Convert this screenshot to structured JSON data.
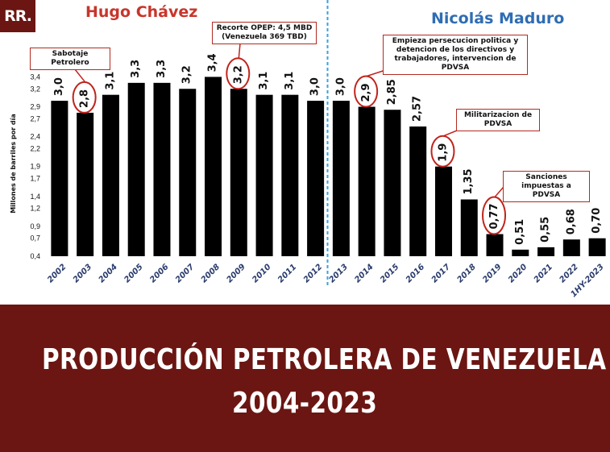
{
  "logo": {
    "text": "RR."
  },
  "eras": {
    "left": "Hugo Chávez",
    "right": "Nicolás Maduro"
  },
  "callouts": {
    "sabotaje": "Sabotaje Petrolero",
    "opep_line1": "Recorte OPEP: 4,5 MBD",
    "opep_line2": "(Venezuela 369 TBD)",
    "persecucion_line1": "Empieza persecucion politica y",
    "persecucion_line2": "detencion de los directivos y",
    "persecucion_line3": "trabajadores, intervencion de PDVSA",
    "militarizacion_line1": "Militarizacion de",
    "militarizacion_line2": "PDVSA",
    "sanciones_line1": "Sanciones impuestas a",
    "sanciones_line2": "PDVSA"
  },
  "banner": {
    "line1": "PRODUCCIÓN PETROLERA DE VENEZUELA",
    "line2": "2004-2023"
  },
  "colors": {
    "bar": "#000000",
    "banner_bg": "#6b1612",
    "chavez": "#c8352b",
    "maduro": "#2f6db4",
    "circle": "#c0241c",
    "divider": "#3aa0e0",
    "category_label": "#2b3d6e"
  },
  "chart_data": {
    "type": "bar",
    "title": "",
    "xlabel": "",
    "ylabel": "Millones de barriles por día",
    "ylim": [
      0.4,
      3.5
    ],
    "yticks": [
      "0,4",
      "0,7",
      "0,9",
      "1,2",
      "1,4",
      "1,7",
      "1,9",
      "2,2",
      "2,4",
      "2,7",
      "2,9",
      "3,2",
      "3,4"
    ],
    "ytick_values": [
      0.4,
      0.7,
      0.9,
      1.2,
      1.4,
      1.7,
      1.9,
      2.2,
      2.4,
      2.7,
      2.9,
      3.2,
      3.4
    ],
    "categories": [
      "2002",
      "2003",
      "2004",
      "2005",
      "2006",
      "2007",
      "2008",
      "2009",
      "2010",
      "2011",
      "2012",
      "2013",
      "2014",
      "2015",
      "2016",
      "2017",
      "2018",
      "2019",
      "2020",
      "2021",
      "2022",
      "1HY-2023"
    ],
    "values": [
      3.0,
      2.8,
      3.1,
      3.3,
      3.3,
      3.2,
      3.4,
      3.2,
      3.1,
      3.1,
      3.0,
      3.0,
      2.9,
      2.85,
      2.57,
      1.9,
      1.35,
      0.77,
      0.51,
      0.55,
      0.68,
      0.7
    ],
    "data_labels": [
      "3,0",
      "2,8",
      "3,1",
      "3,3",
      "3,3",
      "3,2",
      "3,4",
      "3,2",
      "3,1",
      "3,1",
      "3,0",
      "3,0",
      "2,9",
      "2,85",
      "2,57",
      "1,9",
      "1,35",
      "0,77",
      "0,51",
      "0,55",
      "0,68",
      "0,70"
    ],
    "circled": [
      "2003",
      "2009",
      "2014",
      "2017",
      "2019"
    ],
    "divider_between": [
      "2012",
      "2013"
    ],
    "grid": false,
    "legend": "none"
  }
}
